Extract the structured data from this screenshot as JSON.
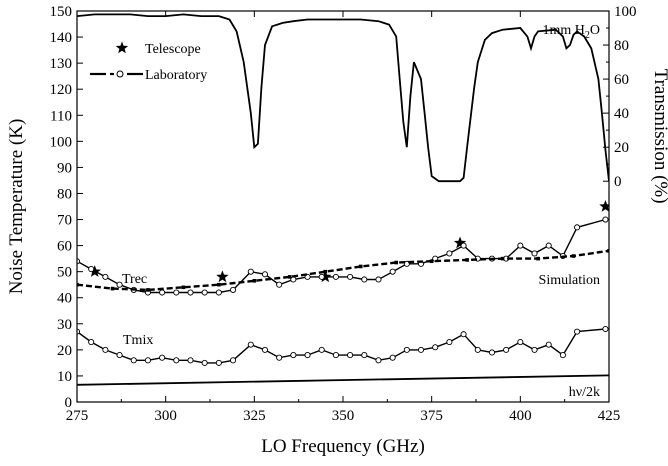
{
  "chart_data": {
    "type": "line",
    "xlabel": "LO Frequency (GHz)",
    "ylabel": "Noise Temperature (K)",
    "y2label": "Transmission (%)",
    "xlim": [
      275,
      425
    ],
    "ylim": [
      0,
      150
    ],
    "y2lim": [
      0,
      100
    ],
    "x_ticks": [
      275,
      300,
      325,
      350,
      375,
      400,
      425
    ],
    "y_ticks": [
      0,
      10,
      20,
      30,
      40,
      50,
      60,
      70,
      80,
      90,
      100,
      110,
      120,
      130,
      140,
      150
    ],
    "y2_ticks": [
      0,
      20,
      40,
      60,
      80,
      100
    ],
    "legend": [
      {
        "name": "Telescope",
        "marker": "star"
      },
      {
        "name": "Laboratory",
        "marker": "open-circle-dashed"
      }
    ],
    "annotations": {
      "trec": "Trec",
      "tmix": "Tmix",
      "simulation": "Simulation",
      "hv": "hν/2k",
      "h2o_prefix": "1mm H",
      "h2o_sub": "2",
      "h2o_suffix": "O"
    },
    "series": [
      {
        "name": "Telescope",
        "axis": "left",
        "style": "star",
        "x": [
          280,
          316,
          345,
          383,
          424
        ],
        "y": [
          50,
          48,
          48,
          61,
          75
        ]
      },
      {
        "name": "Laboratory",
        "axis": "left",
        "style": "open-circle-line",
        "x": [
          275,
          279,
          283,
          287,
          291,
          295,
          299,
          303,
          307,
          311,
          315,
          319,
          324,
          328,
          332,
          336,
          340,
          344,
          348,
          352,
          356,
          360,
          364,
          368,
          372,
          376,
          380,
          384,
          388,
          392,
          396,
          400,
          404,
          408,
          412,
          416,
          424
        ],
        "y": [
          54,
          51,
          48,
          45,
          43,
          42,
          42,
          42,
          42,
          42,
          42,
          43,
          50,
          49,
          45,
          47,
          48,
          48,
          48,
          48,
          47,
          47,
          50,
          53,
          53,
          55,
          57,
          60,
          55,
          55,
          55,
          60,
          57,
          60,
          56,
          67,
          70
        ]
      },
      {
        "name": "Simulation",
        "axis": "left",
        "style": "dashed-square",
        "x": [
          275,
          285,
          295,
          305,
          315,
          325,
          335,
          345,
          355,
          365,
          375,
          385,
          395,
          405,
          415,
          425
        ],
        "y": [
          45,
          43.5,
          43,
          44,
          45,
          46.5,
          48,
          50,
          52,
          53.5,
          54,
          54.5,
          55,
          55,
          56,
          58
        ]
      },
      {
        "name": "Tmix",
        "axis": "left",
        "style": "open-circle-line",
        "x": [
          275,
          279,
          283,
          287,
          291,
          295,
          299,
          303,
          307,
          311,
          315,
          319,
          324,
          328,
          332,
          336,
          340,
          344,
          348,
          352,
          356,
          360,
          364,
          368,
          372,
          376,
          380,
          384,
          388,
          392,
          396,
          400,
          404,
          408,
          412,
          416,
          424
        ],
        "y": [
          27,
          23,
          20,
          18,
          16,
          16,
          17,
          16,
          16,
          15,
          15,
          16,
          22,
          20,
          17,
          18,
          18,
          20,
          18,
          18,
          18,
          16,
          17,
          20,
          20,
          21,
          23,
          26,
          20,
          19,
          20,
          23,
          20,
          22,
          18,
          27,
          28
        ]
      },
      {
        "name": "hν/2k",
        "axis": "left",
        "style": "solid",
        "x": [
          275,
          425
        ],
        "y": [
          6.6,
          10.2
        ]
      },
      {
        "name": "1mm H2O",
        "axis": "right",
        "style": "solid",
        "x": [
          275,
          280,
          285,
          290,
          295,
          300,
          305,
          310,
          315,
          318,
          320,
          322,
          324,
          325,
          326,
          327,
          328,
          330,
          333,
          336,
          340,
          345,
          350,
          355,
          360,
          363,
          365,
          366,
          367,
          368,
          369,
          370,
          372,
          373,
          374,
          375,
          377,
          380,
          383,
          384,
          385,
          387,
          388,
          390,
          392,
          395,
          400,
          402,
          403,
          404,
          405,
          410,
          412,
          413,
          414,
          415,
          416,
          418,
          420,
          422,
          423,
          424,
          425
        ],
        "y": [
          97,
          98,
          98,
          98,
          97,
          97,
          98,
          97,
          97,
          95,
          88,
          70,
          40,
          20,
          22,
          55,
          80,
          91,
          93,
          94,
          95,
          95,
          95,
          95,
          94,
          92,
          85,
          60,
          35,
          20,
          50,
          70,
          60,
          40,
          20,
          3,
          0,
          0,
          0,
          2,
          20,
          55,
          70,
          83,
          87,
          89,
          90,
          85,
          78,
          85,
          88,
          89,
          85,
          78,
          80,
          86,
          88,
          85,
          78,
          60,
          40,
          18,
          0
        ]
      }
    ]
  }
}
